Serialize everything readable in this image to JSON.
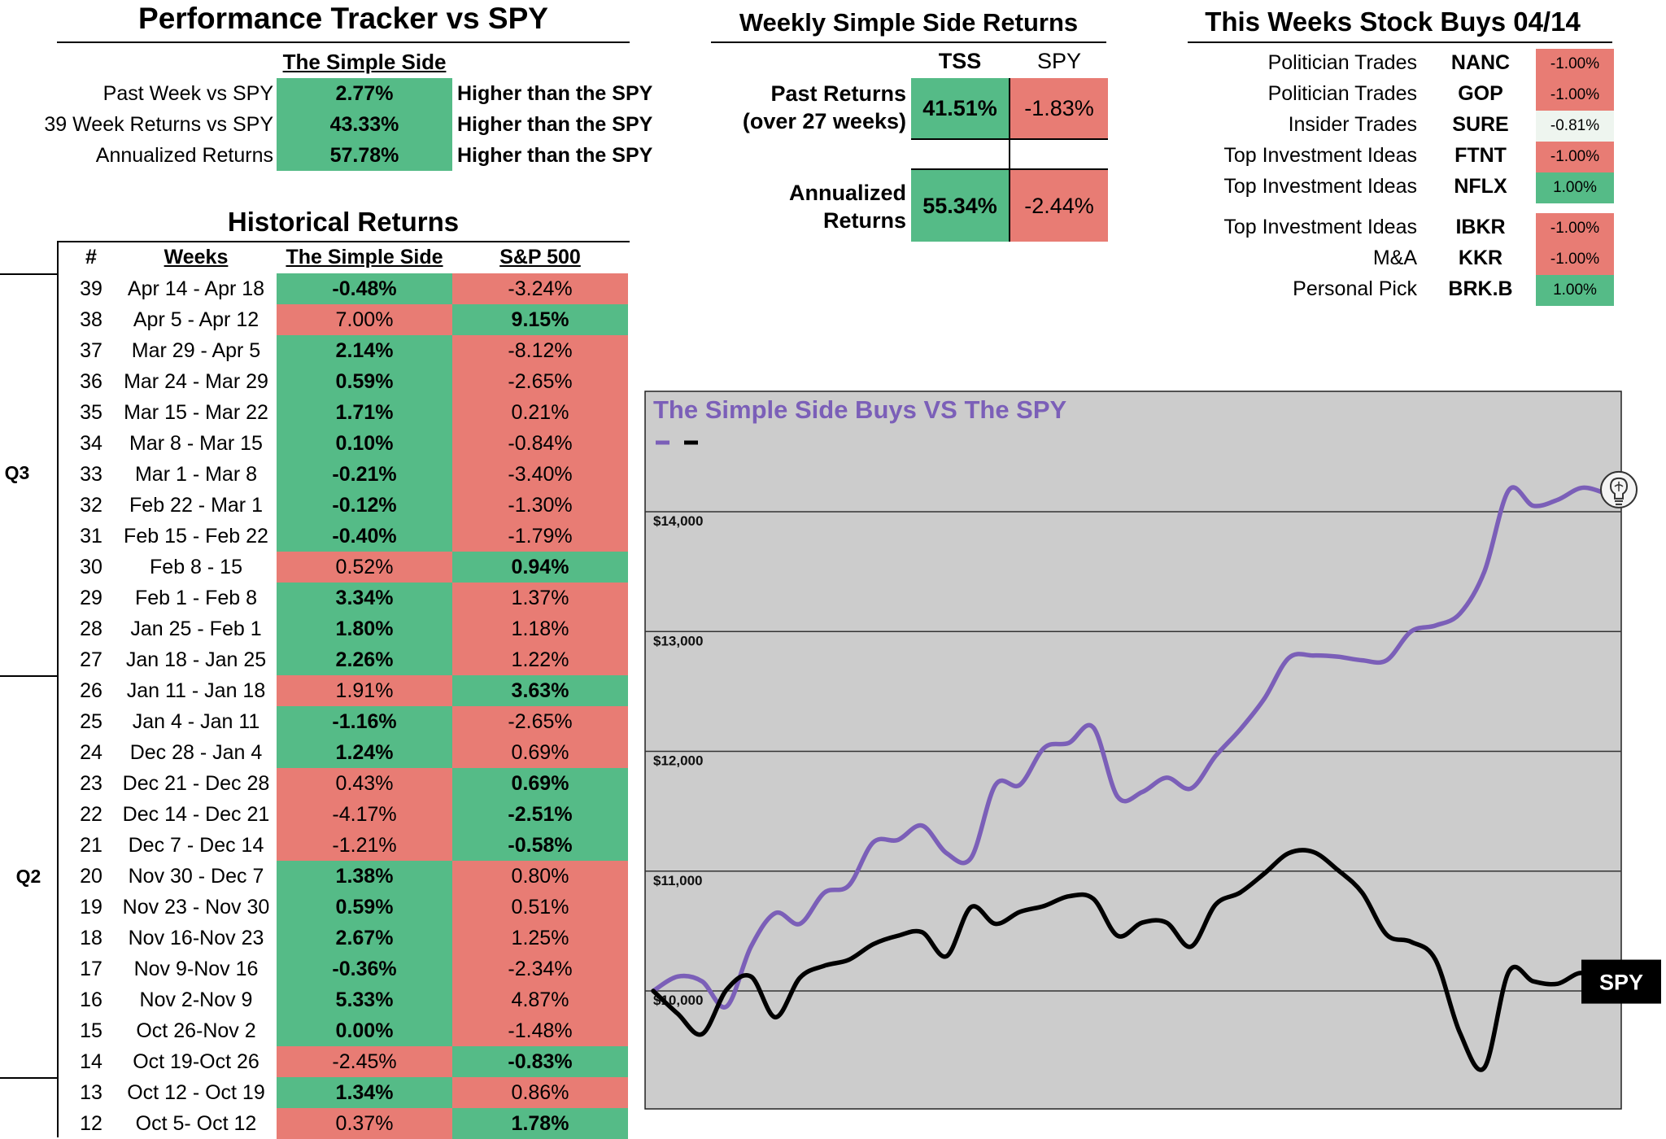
{
  "tracker": {
    "title": "Performance Tracker vs SPY",
    "column_header": "The Simple Side",
    "rows": [
      {
        "label": "Past Week vs SPY",
        "value": "2.77%",
        "status": "Higher than the SPY"
      },
      {
        "label": "39 Week Returns vs SPY",
        "value": "43.33%",
        "status": "Higher than the SPY"
      },
      {
        "label": "Annualized Returns",
        "value": "57.78%",
        "status": "Higher than the SPY"
      }
    ]
  },
  "weekly": {
    "title": "Weekly Simple Side Returns",
    "col_tss": "TSS",
    "col_spy": "SPY",
    "past_label_1": "Past Returns",
    "past_label_2": "(over 27 weeks)",
    "past_tss": "41.51%",
    "past_spy": "-1.83%",
    "ann_label_1": "Annualized",
    "ann_label_2": "Returns",
    "ann_tss": "55.34%",
    "ann_spy": "-2.44%"
  },
  "buys": {
    "title": "This Weeks Stock Buys 04/14",
    "items": [
      {
        "category": "Politician Trades",
        "ticker": "NANC",
        "change": "-1.00%",
        "status": "negative"
      },
      {
        "category": "Politician Trades",
        "ticker": "GOP",
        "change": "-1.00%",
        "status": "negative"
      },
      {
        "category": "Insider Trades",
        "ticker": "SURE",
        "change": "-0.81%",
        "status": "neutral"
      },
      {
        "category": "Top Investment Ideas",
        "ticker": "FTNT",
        "change": "-1.00%",
        "status": "negative"
      },
      {
        "category": "Top Investment Ideas",
        "ticker": "NFLX",
        "change": "1.00%",
        "status": "positive"
      },
      {
        "category": "Top Investment Ideas",
        "ticker": "IBKR",
        "change": "-1.00%",
        "status": "negative"
      },
      {
        "category": "M&A",
        "ticker": "KKR",
        "change": "-1.00%",
        "status": "negative"
      },
      {
        "category": "Personal Pick",
        "ticker": "BRK.B",
        "change": "1.00%",
        "status": "positive"
      }
    ]
  },
  "historical": {
    "title": "Historical Returns",
    "headers": {
      "num": "#",
      "weeks": "Weeks",
      "tss": "The Simple Side",
      "sp": "S&P 500"
    },
    "quarters": [
      "Q3",
      "Q2"
    ],
    "rows": [
      {
        "num": "39",
        "weeks": "Apr 14 - Apr 18",
        "tss": "-0.48%",
        "sp": "-3.24%",
        "winner": "tss"
      },
      {
        "num": "38",
        "weeks": "Apr 5 - Apr 12",
        "tss": "7.00%",
        "sp": "9.15%",
        "winner": "sp"
      },
      {
        "num": "37",
        "weeks": "Mar 29 - Apr 5",
        "tss": "2.14%",
        "sp": "-8.12%",
        "winner": "tss"
      },
      {
        "num": "36",
        "weeks": "Mar 24 - Mar 29",
        "tss": "0.59%",
        "sp": "-2.65%",
        "winner": "tss"
      },
      {
        "num": "35",
        "weeks": "Mar 15 - Mar 22",
        "tss": "1.71%",
        "sp": "0.21%",
        "winner": "tss"
      },
      {
        "num": "34",
        "weeks": "Mar 8 - Mar 15",
        "tss": "0.10%",
        "sp": "-0.84%",
        "winner": "tss"
      },
      {
        "num": "33",
        "weeks": "Mar 1 - Mar 8",
        "tss": "-0.21%",
        "sp": "-3.40%",
        "winner": "tss"
      },
      {
        "num": "32",
        "weeks": "Feb 22 - Mar 1",
        "tss": "-0.12%",
        "sp": "-1.30%",
        "winner": "tss"
      },
      {
        "num": "31",
        "weeks": "Feb 15 - Feb 22",
        "tss": "-0.40%",
        "sp": "-1.79%",
        "winner": "tss"
      },
      {
        "num": "30",
        "weeks": "Feb 8 - 15",
        "tss": "0.52%",
        "sp": "0.94%",
        "winner": "sp"
      },
      {
        "num": "29",
        "weeks": "Feb 1 - Feb 8",
        "tss": "3.34%",
        "sp": "1.37%",
        "winner": "tss"
      },
      {
        "num": "28",
        "weeks": "Jan 25 - Feb 1",
        "tss": "1.80%",
        "sp": "1.18%",
        "winner": "tss"
      },
      {
        "num": "27",
        "weeks": "Jan 18 - Jan 25",
        "tss": "2.26%",
        "sp": "1.22%",
        "winner": "tss"
      },
      {
        "num": "26",
        "weeks": "Jan 11 - Jan 18",
        "tss": "1.91%",
        "sp": "3.63%",
        "winner": "sp"
      },
      {
        "num": "25",
        "weeks": "Jan 4 - Jan 11",
        "tss": "-1.16%",
        "sp": "-2.65%",
        "winner": "tss"
      },
      {
        "num": "24",
        "weeks": "Dec 28 - Jan 4",
        "tss": "1.24%",
        "sp": "0.69%",
        "winner": "tss"
      },
      {
        "num": "23",
        "weeks": "Dec 21 - Dec 28",
        "tss": "0.43%",
        "sp": "0.69%",
        "winner": "sp"
      },
      {
        "num": "22",
        "weeks": "Dec 14 - Dec 21",
        "tss": "-4.17%",
        "sp": "-2.51%",
        "winner": "sp"
      },
      {
        "num": "21",
        "weeks": "Dec 7 - Dec 14",
        "tss": "-1.21%",
        "sp": "-0.58%",
        "winner": "sp"
      },
      {
        "num": "20",
        "weeks": "Nov 30 - Dec 7",
        "tss": "1.38%",
        "sp": "0.80%",
        "winner": "tss"
      },
      {
        "num": "19",
        "weeks": "Nov 23 - Nov 30",
        "tss": "0.59%",
        "sp": "0.51%",
        "winner": "tss"
      },
      {
        "num": "18",
        "weeks": "Nov 16-Nov 23",
        "tss": "2.67%",
        "sp": "1.25%",
        "winner": "tss"
      },
      {
        "num": "17",
        "weeks": "Nov 9-Nov 16",
        "tss": "-0.36%",
        "sp": "-2.34%",
        "winner": "tss"
      },
      {
        "num": "16",
        "weeks": "Nov 2-Nov 9",
        "tss": "5.33%",
        "sp": "4.87%",
        "winner": "tss"
      },
      {
        "num": "15",
        "weeks": "Oct 26-Nov 2",
        "tss": "0.00%",
        "sp": "-1.48%",
        "winner": "tss"
      },
      {
        "num": "14",
        "weeks": "Oct 19-Oct 26",
        "tss": "-2.45%",
        "sp": "-0.83%",
        "winner": "sp"
      },
      {
        "num": "13",
        "weeks": "Oct 12 - Oct 19",
        "tss": "1.34%",
        "sp": "0.86%",
        "winner": "tss"
      },
      {
        "num": "12",
        "weeks": "Oct 5- Oct 12",
        "tss": "0.37%",
        "sp": "1.78%",
        "winner": "sp"
      }
    ]
  },
  "colors": {
    "positive": "#55bb87",
    "negative": "#e87c74",
    "tss_line": "#7b5fb8",
    "spy_line": "#000000",
    "plot_bg": "#cccccc"
  },
  "chart_data": {
    "type": "line",
    "title": "The Simple Side Buys VS The SPY",
    "ylim": [
      9100,
      14800
    ],
    "yticks": [
      10000,
      11000,
      12000,
      13000,
      14000
    ],
    "ytick_labels": [
      "$10,000",
      "$11,000",
      "$12,000",
      "$13,000",
      "$14,000"
    ],
    "grid": true,
    "end_label": "SPY",
    "end_icon": "lightbulb-brain-icon",
    "series": [
      {
        "color": "#7b5fb8",
        "x": [
          0,
          1,
          2,
          3,
          4,
          5,
          6,
          7,
          8,
          9,
          10,
          11,
          12,
          13,
          14,
          15,
          16,
          17,
          18,
          19,
          20,
          21,
          22,
          23,
          24,
          25,
          26,
          27,
          28,
          29,
          30,
          31,
          32,
          33,
          34,
          35,
          36,
          37,
          38,
          39
        ],
        "values": [
          10000,
          10120,
          10080,
          9870,
          10370,
          10650,
          10560,
          10820,
          10880,
          11240,
          11260,
          11380,
          11150,
          11110,
          11720,
          11720,
          12030,
          12070,
          12200,
          11620,
          11660,
          11780,
          11690,
          11960,
          12180,
          12440,
          12780,
          12800,
          12790,
          12760,
          12760,
          13000,
          13050,
          13150,
          13500,
          14180,
          14050,
          14100,
          14200,
          14150
        ]
      },
      {
        "color": "#000000",
        "x": [
          0,
          1,
          2,
          3,
          4,
          5,
          6,
          7,
          8,
          9,
          10,
          11,
          12,
          13,
          14,
          15,
          16,
          17,
          18,
          19,
          20,
          21,
          22,
          23,
          24,
          25,
          26,
          27,
          28,
          29,
          30,
          31,
          32,
          33,
          34,
          35,
          36,
          37,
          38,
          39
        ],
        "values": [
          10000,
          9810,
          9640,
          10010,
          10120,
          9780,
          10110,
          10210,
          10260,
          10390,
          10460,
          10490,
          10290,
          10700,
          10560,
          10660,
          10710,
          10790,
          10770,
          10460,
          10570,
          10570,
          10370,
          10720,
          10820,
          10980,
          11150,
          11160,
          11010,
          10820,
          10470,
          10410,
          10260,
          9650,
          9360,
          10160,
          10080,
          10060,
          10150,
          10030
        ]
      }
    ]
  }
}
